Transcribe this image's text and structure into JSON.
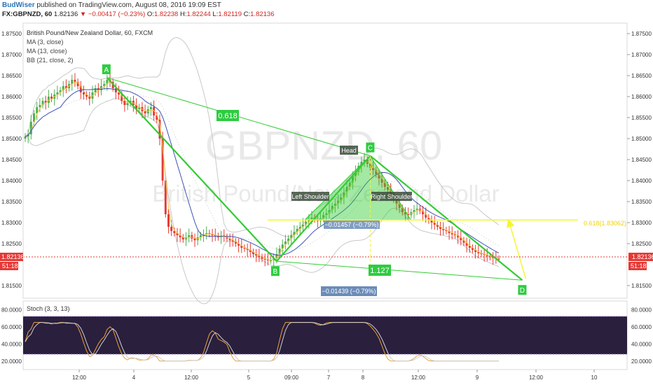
{
  "header": {
    "author": "BudWiser",
    "published": "published on TradingView.com, August 08, 2016 19:09 EST",
    "symbol": "FX:GBPNZD, 60",
    "last": "1.82136",
    "change": "▼ −0.00417 (−0.23%)",
    "open_label": "O:",
    "open": "1.82238",
    "high_label": "H:",
    "high": "1.82244",
    "low_label": "L:",
    "low": "1.82119",
    "close_label": "C:",
    "close": "1.82136"
  },
  "legend": {
    "title": "British Pound/New Zealand Dollar, 60, FXCM",
    "items": [
      "MA (3, close)",
      "MA (13, close)",
      "BB (21, close, 2)"
    ]
  },
  "watermark": {
    "symbol": "GBPNZD, 60",
    "name": "British Pound/New Zealand Dollar"
  },
  "price_axis": {
    "ticks": [
      "1.87500",
      "1.87000",
      "1.86500",
      "1.86000",
      "1.85500",
      "1.85000",
      "1.84500",
      "1.84000",
      "1.83500",
      "1.83000",
      "1.82500",
      "1.81500"
    ],
    "current_price": "1.82136",
    "countdown": "51:18"
  },
  "time_axis": {
    "ticks": [
      "12:00",
      "4",
      "12:00",
      "5",
      "09:00",
      "7",
      "8",
      "12:00",
      "9",
      "12:00",
      "10"
    ]
  },
  "annotations": {
    "points": [
      "A",
      "B",
      "C",
      "D"
    ],
    "head": "Head",
    "left_shoulder": "Left Shoulder",
    "right_shoulder": "Right Shoulder",
    "fib_ab": "0.618",
    "fib_bc": "1.127",
    "neckline_label": "0.618(1.83062)",
    "measure_box_1": "−0.01457 (−0.79%)",
    "measure_box_2": "−0.01439 (−0.79%)"
  },
  "stoch": {
    "title": "Stoch (3, 3, 13)",
    "ticks": [
      "80.0000",
      "60.0000",
      "40.0000",
      "20.0000"
    ]
  },
  "colors": {
    "bull": "#4caf50",
    "bear": "#e53935",
    "pattern_line": "#33cc33",
    "neckline": "#f5f535",
    "current_price": "#e53935",
    "stoch_band": "#2a1f3d",
    "point_label": "#2ecc40",
    "measure_box": "#6b8cb8"
  },
  "chart_data": {
    "type": "candlestick",
    "title": "British Pound/New Zealand Dollar, 60, FXCM",
    "ylim": [
      1.812,
      1.8775
    ],
    "x_range_bars": [
      0,
      160
    ],
    "pattern_points": [
      {
        "name": "A",
        "bar": 28,
        "price": 1.8645
      },
      {
        "name": "B",
        "bar": 86,
        "price": 1.8208
      },
      {
        "name": "C",
        "bar": 118,
        "price": 1.8459
      },
      {
        "name": "D",
        "bar": 170,
        "price": 1.8163
      }
    ],
    "neckline_price": 1.83062,
    "projection_target": 1.83062,
    "close_series": [
      1.8505,
      1.851,
      1.854,
      1.856,
      1.8575,
      1.858,
      1.859,
      1.8585,
      1.86,
      1.8595,
      1.8605,
      1.861,
      1.8615,
      1.8625,
      1.862,
      1.863,
      1.864,
      1.8635,
      1.8625,
      1.861,
      1.8605,
      1.86,
      1.8595,
      1.861,
      1.862,
      1.8615,
      1.8625,
      1.863,
      1.864,
      1.8635,
      1.862,
      1.861,
      1.8605,
      1.859,
      1.858,
      1.8585,
      1.859,
      1.858,
      1.857,
      1.8575,
      1.8565,
      1.856,
      1.857,
      1.8575,
      1.8555,
      1.8545,
      1.85,
      1.84,
      1.832,
      1.829,
      1.828,
      1.8275,
      1.827,
      1.8265,
      1.826,
      1.8265,
      1.827,
      1.8262,
      1.8258,
      1.8265,
      1.827,
      1.8272,
      1.8275,
      1.8273,
      1.827,
      1.8268,
      1.8265,
      1.8268,
      1.8266,
      1.8262,
      1.8258,
      1.8255,
      1.825,
      1.8245,
      1.824,
      1.8238,
      1.8235,
      1.823,
      1.8225,
      1.8222,
      1.8218,
      1.8214,
      1.8212,
      1.821,
      1.821,
      1.8215,
      1.8225,
      1.8238,
      1.8248,
      1.8255,
      1.8262,
      1.827,
      1.8278,
      1.8285,
      1.829,
      1.8295,
      1.8302,
      1.8308,
      1.8312,
      1.8308,
      1.8304,
      1.831,
      1.8318,
      1.8322,
      1.833,
      1.834,
      1.8345,
      1.8352,
      1.836,
      1.8372,
      1.8385,
      1.8395,
      1.841,
      1.842,
      1.8435,
      1.8445,
      1.845,
      1.844,
      1.843,
      1.8425,
      1.8415,
      1.8405,
      1.8395,
      1.8385,
      1.8378,
      1.8365,
      1.8355,
      1.8345,
      1.8335,
      1.8325,
      1.832,
      1.8318,
      1.8325,
      1.833,
      1.8333,
      1.8328,
      1.832,
      1.8312,
      1.8305,
      1.83,
      1.8295,
      1.829,
      1.8285,
      1.8282,
      1.828,
      1.8275,
      1.8272,
      1.827,
      1.8265,
      1.8258,
      1.8252,
      1.8245,
      1.824,
      1.8235,
      1.823,
      1.8227,
      1.8225,
      1.8223,
      1.822,
      1.8218,
      1.8216,
      1.8214,
      1.82136
    ]
  }
}
